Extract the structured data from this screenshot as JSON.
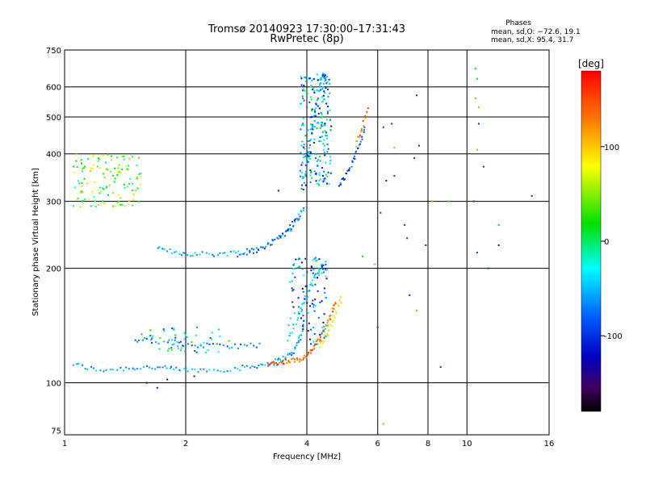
{
  "chart_data": {
    "type": "scatter",
    "title": "Tromsø 20140923 17:30:00–17:31:43",
    "subtitle": "RwPretec (8p)",
    "xlabel": "Frequency [MHz]",
    "ylabel": "Stationary phase Virtual Height [km]",
    "x_scale": "log",
    "y_scale": "log",
    "xlim": [
      1,
      16
    ],
    "ylim": [
      73,
      750
    ],
    "x_ticks": [
      1,
      2,
      4,
      6,
      8,
      10,
      16
    ],
    "x_tick_labels": [
      "1",
      "2",
      "4",
      "6",
      "8",
      "10",
      "16"
    ],
    "x_grid": [
      2,
      4,
      6,
      8,
      10
    ],
    "y_ticks": [
      75,
      100,
      200,
      300,
      400,
      500,
      600,
      750
    ],
    "y_tick_labels": [
      "75",
      "100",
      "200",
      "300",
      "400",
      "500",
      "600",
      "750"
    ],
    "y_grid": [
      100,
      200,
      300,
      400,
      500,
      600
    ],
    "grid": true,
    "stats": {
      "heading": "Phases",
      "o_line": "mean, sd,O: −72.6, 19.1",
      "x_line": "mean, sd,X:  95.4, 31.7"
    },
    "colorbar": {
      "label": "[deg]",
      "range": [
        -180,
        180
      ],
      "ticks": [
        100,
        0,
        -100
      ],
      "tick_labels": [
        "100",
        "0",
        "-100"
      ]
    },
    "traces": [
      {
        "phase": -60,
        "x": [
          1.05,
          1.2,
          1.4,
          1.6,
          1.8,
          2.0,
          2.3,
          2.7,
          3.0,
          3.3,
          3.5,
          3.7,
          3.85,
          3.95
        ],
        "y": [
          112,
          108,
          109,
          110,
          109,
          108,
          108,
          109,
          111,
          113,
          116,
          120,
          130,
          150
        ]
      },
      {
        "phase": 140,
        "x": [
          3.2,
          3.4,
          3.6,
          3.8,
          4.0,
          4.15,
          4.3,
          4.45,
          4.6,
          4.75
        ],
        "y": [
          112,
          113,
          114,
          115,
          118,
          123,
          130,
          140,
          152,
          165
        ]
      },
      {
        "phase": 80,
        "x": [
          4.3,
          4.5,
          4.7,
          4.9
        ],
        "y": [
          125,
          135,
          150,
          170
        ]
      },
      {
        "phase": -60,
        "x": [
          1.7,
          1.9,
          2.1,
          2.4,
          2.7,
          3.0,
          3.3,
          3.6,
          3.8,
          3.95
        ],
        "y": [
          225,
          220,
          218,
          218,
          220,
          225,
          235,
          250,
          270,
          290
        ]
      },
      {
        "phase": -90,
        "x": [
          2.7,
          3.1,
          3.5,
          3.8
        ],
        "y": [
          215,
          225,
          245,
          275
        ]
      },
      {
        "phase": -60,
        "x": [
          3.9,
          4.0,
          4.1,
          4.2,
          4.3,
          4.4,
          4.45
        ],
        "y": [
          320,
          380,
          450,
          520,
          600,
          650,
          620
        ]
      },
      {
        "phase": -85,
        "x": [
          4.8,
          5.0,
          5.2,
          5.4,
          5.6
        ],
        "y": [
          330,
          350,
          380,
          420,
          470
        ]
      },
      {
        "phase": 130,
        "x": [
          5.3,
          5.5,
          5.7
        ],
        "y": [
          420,
          470,
          540
        ]
      },
      {
        "phase": -40,
        "x": [
          3.6,
          3.8,
          4.0,
          4.2,
          4.4
        ],
        "y": [
          130,
          150,
          170,
          190,
          210
        ]
      },
      {
        "phase": -70,
        "x": [
          1.5,
          1.8,
          2.0,
          2.3,
          2.7,
          3.1
        ],
        "y": [
          130,
          128,
          126,
          125,
          125,
          126
        ]
      }
    ],
    "clusters": [
      {
        "phase": 40,
        "x": [
          1.05,
          1.55
        ],
        "y": [
          290,
          400
        ],
        "count": 130
      },
      {
        "phase": -60,
        "x": [
          3.85,
          4.6
        ],
        "y": [
          330,
          650
        ],
        "count": 220
      },
      {
        "phase": -70,
        "x": [
          3.6,
          4.5
        ],
        "y": [
          125,
          215
        ],
        "count": 120
      },
      {
        "phase": -30,
        "x": [
          1.5,
          2.6
        ],
        "y": [
          120,
          140
        ],
        "count": 50
      }
    ],
    "isolated": [
      {
        "phase": -100,
        "x": [
          6.0,
          6.1,
          6.2,
          6.3,
          6.5,
          6.6,
          7.0,
          7.1,
          7.2,
          7.4,
          7.5,
          7.6,
          7.9,
          8.6,
          10.4,
          10.6,
          10.7,
          11.0,
          11.3,
          12.0,
          14.5
        ],
        "y": [
          140,
          280,
          470,
          340,
          480,
          350,
          260,
          240,
          170,
          390,
          570,
          420,
          230,
          110,
          300,
          220,
          480,
          370,
          200,
          230,
          310
        ]
      },
      {
        "phase": 120,
        "x": [
          6.2,
          7.5,
          8.2,
          10.5,
          10.7,
          10.6,
          5.9,
          6.6
        ],
        "y": [
          78,
          155,
          300,
          560,
          530,
          410,
          205,
          415
        ]
      },
      {
        "phase": 20,
        "x": [
          10.5,
          10.6,
          12.0,
          5.5,
          9.0
        ],
        "y": [
          670,
          630,
          260,
          215,
          300
        ]
      },
      {
        "phase": -150,
        "x": [
          1.6,
          1.7,
          1.8,
          2.1,
          3.4
        ],
        "y": [
          100,
          97,
          102,
          104,
          320
        ]
      }
    ]
  }
}
